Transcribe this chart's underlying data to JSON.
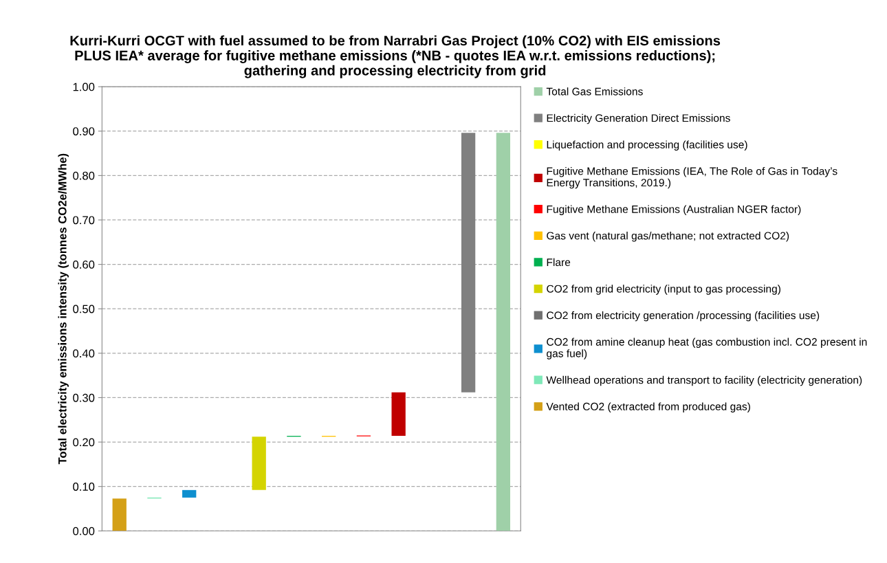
{
  "chart_data": {
    "type": "bar",
    "title": "Kurri-Kurri OCGT with fuel assumed to be from Narrabri Gas Project (10% CO2) with EIS emissions\nPLUS IEA* average for fugitive methane emissions (*NB - quotes IEA w.r.t. emissions reductions);\ngathering and processing electricity from grid",
    "ylabel": "Total electricity emissions intensity (tonnes CO2e/MWhe)",
    "categories": [
      null,
      null,
      null,
      null,
      null,
      null,
      null,
      null,
      null,
      null,
      null,
      null
    ],
    "series": [
      {
        "name": "Vented CO2 (extracted from produced gas)",
        "color": "#d4a017",
        "values": [
          0.073,
          null,
          null,
          null,
          null,
          null,
          null,
          null,
          null,
          null,
          null,
          null
        ],
        "base": [
          0,
          null,
          null,
          null,
          null,
          null,
          null,
          null,
          null,
          null,
          null,
          null
        ]
      },
      {
        "name": "Wellhead operations and transport to facility (electricity generation)",
        "color": "#7fe8b8",
        "values": [
          null,
          0.002,
          null,
          null,
          null,
          null,
          null,
          null,
          null,
          null,
          null,
          null
        ],
        "base": [
          null,
          0.073,
          null,
          null,
          null,
          null,
          null,
          null,
          null,
          null,
          null,
          null
        ]
      },
      {
        "name": "CO2 from amine cleanup heat (gas combustion incl. CO2 present in gas fuel)",
        "color": "#0e8fcf",
        "values": [
          null,
          null,
          0.017,
          null,
          null,
          null,
          null,
          null,
          null,
          null,
          null,
          null
        ],
        "base": [
          null,
          null,
          0.075,
          null,
          null,
          null,
          null,
          null,
          null,
          null,
          null,
          null
        ]
      },
      {
        "name": "CO2 from electricity generation /processing (facilities use)",
        "color": "#707070",
        "values": [
          null,
          null,
          null,
          null,
          null,
          null,
          null,
          null,
          null,
          null,
          null,
          null
        ]
      },
      {
        "name": "CO2 from grid electricity (input to gas processing)",
        "color": "#d4d400",
        "values": [
          null,
          null,
          null,
          null,
          0.12,
          null,
          null,
          null,
          null,
          null,
          null,
          null
        ],
        "base": [
          null,
          null,
          null,
          null,
          0.092,
          null,
          null,
          null,
          null,
          null,
          null,
          null
        ]
      },
      {
        "name": "Flare",
        "color": "#00b050",
        "values": [
          null,
          null,
          null,
          null,
          null,
          0.002,
          null,
          null,
          null,
          null,
          null,
          null
        ],
        "base": [
          null,
          null,
          null,
          null,
          null,
          0.212,
          null,
          null,
          null,
          null,
          null,
          null
        ]
      },
      {
        "name": "Gas vent (natural gas/methane; not extracted CO2)",
        "color": "#ffc000",
        "values": [
          null,
          null,
          null,
          null,
          null,
          null,
          0.002,
          null,
          null,
          null,
          null,
          null
        ],
        "base": [
          null,
          null,
          null,
          null,
          null,
          null,
          0.212,
          null,
          null,
          null,
          null,
          null
        ]
      },
      {
        "name": "Fugitive Methane Emissions (Australian NGER factor)",
        "color": "#ff0000",
        "values": [
          null,
          null,
          null,
          null,
          null,
          null,
          null,
          0.002,
          null,
          null,
          null,
          null
        ],
        "base": [
          null,
          null,
          null,
          null,
          null,
          null,
          null,
          0.213,
          null,
          null,
          null,
          null
        ]
      },
      {
        "name": "Fugitive Methane Emissions (IEA, The Role of Gas in Today’s Energy Transitions, 2019.)",
        "color": "#c00000",
        "values": [
          null,
          null,
          null,
          null,
          null,
          null,
          null,
          null,
          0.098,
          null,
          null,
          null
        ],
        "base": [
          null,
          null,
          null,
          null,
          null,
          null,
          null,
          null,
          0.214,
          null,
          null,
          null
        ]
      },
      {
        "name": "Liquefaction and processing (facilities use)",
        "color": "#ffff00",
        "values": [
          null,
          null,
          null,
          null,
          null,
          null,
          null,
          null,
          null,
          null,
          null,
          null
        ]
      },
      {
        "name": "Electricity Generation Direct Emissions",
        "color": "#808080",
        "values": [
          null,
          null,
          null,
          null,
          null,
          null,
          null,
          null,
          null,
          null,
          0.584,
          null
        ],
        "base": [
          null,
          null,
          null,
          null,
          null,
          null,
          null,
          null,
          null,
          null,
          0.312,
          null
        ]
      },
      {
        "name": "Total Gas Emissions",
        "color": "#9fd0a8",
        "values": [
          null,
          null,
          null,
          null,
          null,
          null,
          null,
          null,
          null,
          null,
          null,
          0.896
        ],
        "base": [
          null,
          null,
          null,
          null,
          null,
          null,
          null,
          null,
          null,
          null,
          null,
          0
        ]
      }
    ],
    "ylim": [
      0,
      1.0
    ],
    "yticks": [
      {
        "value": 0,
        "label": "0.00"
      },
      {
        "value": 0.1,
        "label": "0.10"
      },
      {
        "value": 0.2,
        "label": "0.20"
      },
      {
        "value": 0.3,
        "label": "0.30"
      },
      {
        "value": 0.4,
        "label": "0.40"
      },
      {
        "value": 0.5,
        "label": "0.50"
      },
      {
        "value": 0.6,
        "label": "0.60"
      },
      {
        "value": 0.7,
        "label": "0.70"
      },
      {
        "value": 0.8,
        "label": "0.80"
      },
      {
        "value": 0.9,
        "label": "0.90"
      },
      {
        "value": 1.0,
        "label": "1.00"
      }
    ],
    "grid": "y",
    "legend": "right",
    "tick_labels": "y"
  }
}
